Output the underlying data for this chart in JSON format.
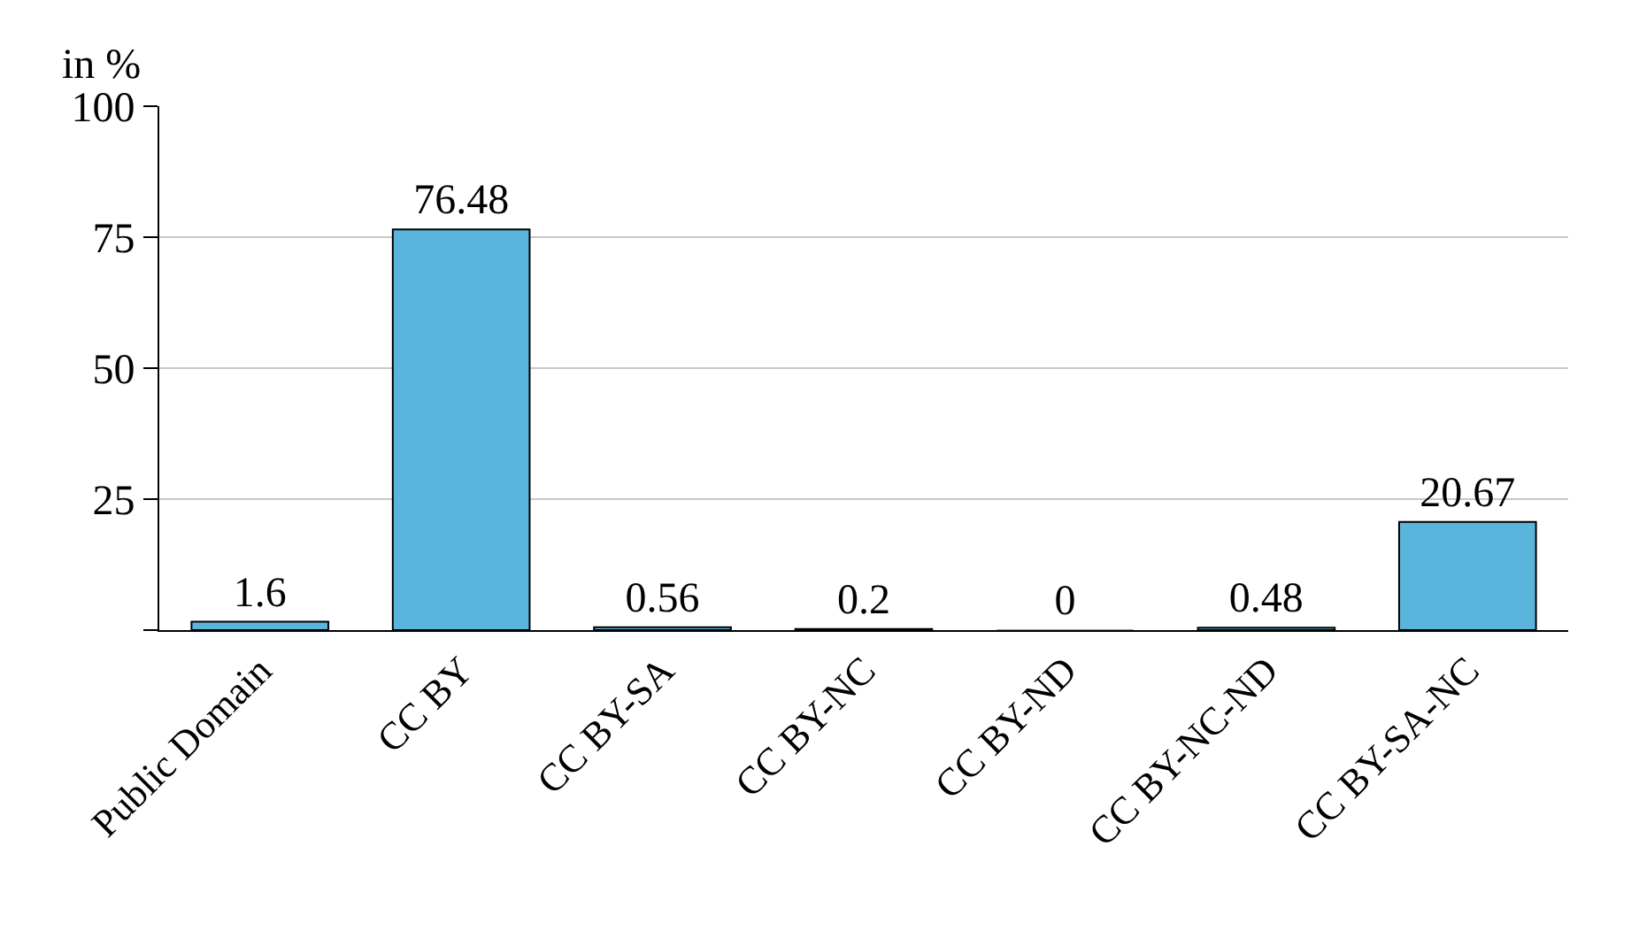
{
  "chart_data": {
    "type": "bar",
    "ylabel": "in %",
    "categories": [
      "Public Domain",
      "CC BY",
      "CC BY-SA",
      "CC BY-NC",
      "CC BY-ND",
      "CC BY-NC-ND",
      "CC BY-SA-NC"
    ],
    "values": [
      1.6,
      76.48,
      0.56,
      0.2,
      0,
      0.48,
      20.67
    ],
    "color": "#5ab4dc",
    "ylim": [
      0,
      100
    ],
    "yticks": [
      {
        "value": 0,
        "label": null
      },
      25,
      50,
      75,
      100
    ],
    "grid": "y",
    "data_labels": true
  }
}
